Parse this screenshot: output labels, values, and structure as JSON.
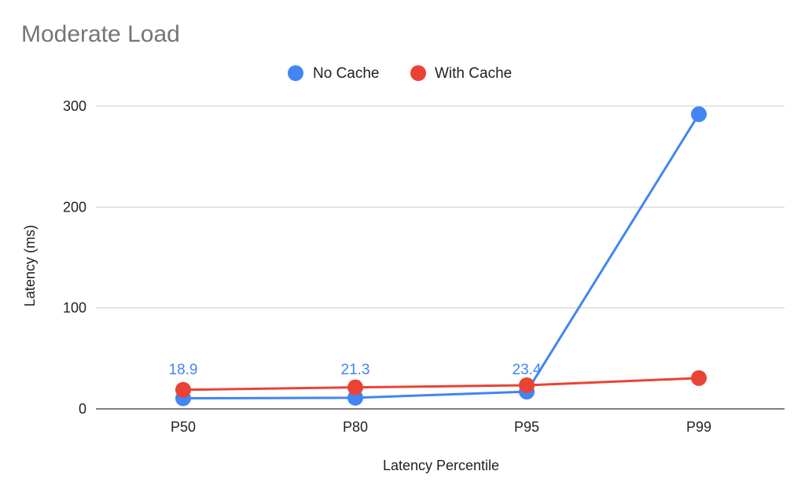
{
  "chart_data": {
    "type": "line",
    "title": "Moderate Load",
    "xlabel": "Latency Percentile",
    "ylabel": "Latency (ms)",
    "categories": [
      "P50",
      "P80",
      "P95",
      "P99"
    ],
    "ylim": [
      0,
      300
    ],
    "yticks": [
      0,
      100,
      200,
      300
    ],
    "grid": true,
    "legend_position": "top-center",
    "series": [
      {
        "name": "No Cache",
        "color": "#4285F4",
        "values": [
          10.5,
          11.0,
          17.0,
          292
        ]
      },
      {
        "name": "With Cache",
        "color": "#EA4335",
        "values": [
          18.9,
          21.3,
          23.4,
          30.5
        ]
      }
    ],
    "data_labels": [
      {
        "category": "P50",
        "text": "18.9",
        "color": "#4285F4"
      },
      {
        "category": "P80",
        "text": "21.3",
        "color": "#4285F4"
      },
      {
        "category": "P95",
        "text": "23.4",
        "color": "#4285F4"
      }
    ]
  }
}
